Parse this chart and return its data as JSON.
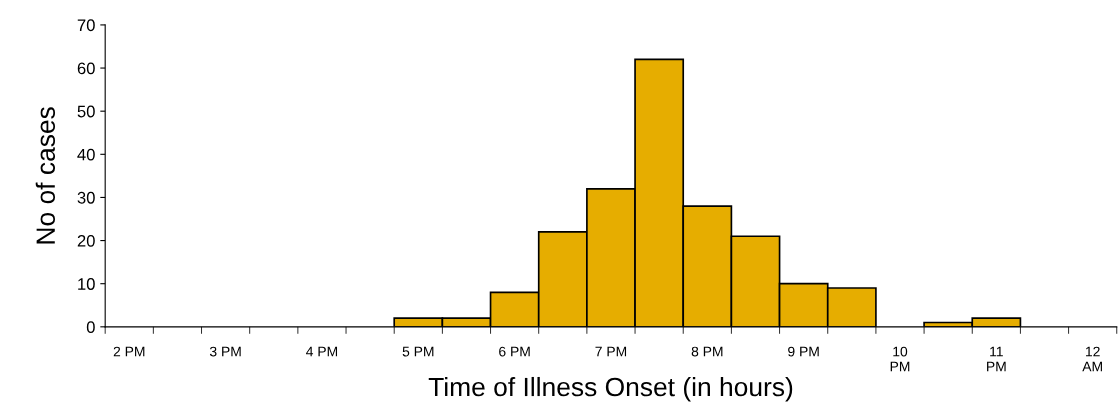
{
  "chart_data": {
    "type": "bar",
    "xlabel": "Time of Illness Onset (in hours)",
    "ylabel": "No of cases",
    "categories": [
      "2 PM",
      null,
      "3 PM",
      null,
      "4 PM",
      null,
      "5 PM",
      null,
      "6 PM",
      null,
      "7 PM",
      null,
      "8 PM",
      null,
      "9 PM",
      null,
      "10 PM",
      null,
      "11 PM",
      null,
      "12 AM"
    ],
    "values": [
      0,
      0,
      0,
      0,
      0,
      0,
      2,
      2,
      8,
      22,
      32,
      62,
      28,
      21,
      10,
      9,
      0,
      1,
      2,
      0,
      0
    ],
    "color": "#e6ad00",
    "ylim": [
      0,
      70
    ],
    "yticks": [
      0,
      10,
      20,
      30,
      40,
      50,
      60,
      70
    ],
    "grid": false,
    "legend": false
  }
}
